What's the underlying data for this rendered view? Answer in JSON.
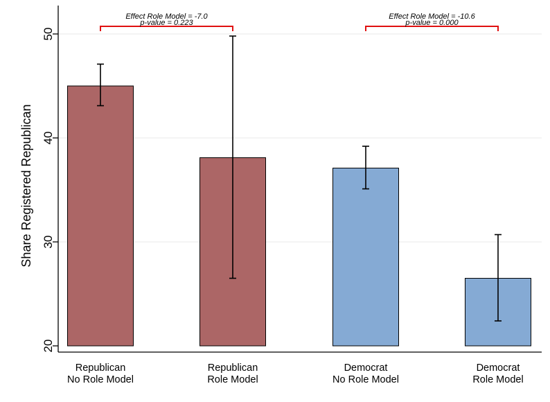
{
  "chart_data": {
    "type": "bar",
    "title": "",
    "xlabel": "",
    "ylabel": "Share Registered Republican",
    "ylim": [
      20,
      52
    ],
    "yticks": [
      20,
      30,
      40,
      50
    ],
    "grid": true,
    "categories": [
      {
        "line1": "Republican",
        "line2": "No Role Model"
      },
      {
        "line1": "Republican",
        "line2": "Role Model"
      },
      {
        "line1": "Democrat",
        "line2": "No Role Model"
      },
      {
        "line1": "Democrat",
        "line2": "Role Model"
      }
    ],
    "values": [
      45.0,
      38.1,
      37.1,
      26.5
    ],
    "ci_low": [
      43.1,
      26.5,
      35.1,
      22.4
    ],
    "ci_high": [
      47.1,
      49.8,
      39.2,
      30.7
    ],
    "bar_colors": [
      "#ac6666",
      "#ac6666",
      "#85aad4",
      "#85aad4"
    ],
    "annotations": [
      {
        "from": 0,
        "to": 1,
        "effect": "Effect Role Model = -7.0",
        "pvalue": "p-value = 0.223"
      },
      {
        "from": 2,
        "to": 3,
        "effect": "Effect Role Model = -10.6",
        "pvalue": "p-value = 0.000"
      }
    ],
    "bracket_color": "#e01010"
  }
}
